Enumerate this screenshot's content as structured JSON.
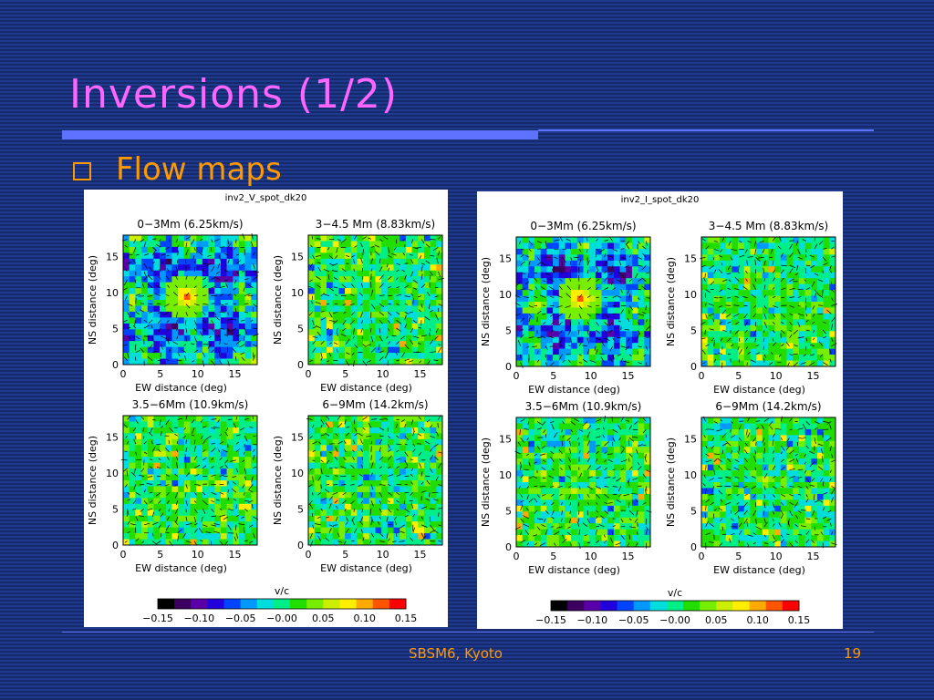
{
  "slide": {
    "title": "Inversions (1/2)",
    "bullet": "Flow maps",
    "footer_text": "SBSM6, Kyoto",
    "page_number": "19"
  },
  "colors": {
    "background": "#1a2f7a",
    "title": "#ff66ff",
    "accent_rule": "#5f72ff",
    "bullet_text": "#ff9900",
    "footer_text": "#ff9900"
  },
  "figures": [
    {
      "title": "inv2_V_spot_dk20",
      "panels": [
        {
          "title": "0−3Mm (6.25km/s)",
          "x_label": "EW distance (deg)",
          "y_label": "NS distance (deg)",
          "x_ticks": [
            "0",
            "5",
            "10",
            "15"
          ],
          "y_ticks": [
            "0",
            "5",
            "10",
            "15"
          ],
          "spot_strength": 1.0
        },
        {
          "title": "3−4.5 Mm (8.83km/s)",
          "x_label": "EW distance (deg)",
          "y_label": "NS distance (deg)",
          "x_ticks": [
            "0",
            "5",
            "10",
            "15"
          ],
          "y_ticks": [
            "0",
            "5",
            "10",
            "15"
          ],
          "spot_strength": 0.0
        },
        {
          "title": "3.5−6Mm (10.9km/s)",
          "x_label": "EW distance (deg)",
          "y_label": "NS distance (deg)",
          "x_ticks": [
            "0",
            "5",
            "10",
            "15"
          ],
          "y_ticks": [
            "0",
            "5",
            "10",
            "15"
          ],
          "spot_strength": 0.0
        },
        {
          "title": "6−9Mm (14.2km/s)",
          "x_label": "EW distance (deg)",
          "y_label": "NS distance (deg)",
          "x_ticks": [
            "0",
            "5",
            "10",
            "15"
          ],
          "y_ticks": [
            "0",
            "5",
            "10",
            "15"
          ],
          "spot_strength": 0.0
        }
      ],
      "colorbar": {
        "label": "v/c",
        "ticks": [
          "−0.15",
          "−0.10",
          "−0.05",
          "−0.00",
          "0.05",
          "0.10",
          "0.15"
        ]
      }
    },
    {
      "title": "inv2_I_spot_dk20",
      "panels": [
        {
          "title": "0−3Mm (6.25km/s)",
          "x_label": "EW distance (deg)",
          "y_label": "NS distance (deg)",
          "x_ticks": [
            "0",
            "5",
            "10",
            "15"
          ],
          "y_ticks": [
            "0",
            "5",
            "10",
            "15"
          ],
          "spot_strength": 0.85
        },
        {
          "title": "3−4.5 Mm (8.83km/s)",
          "x_label": "EW distance (deg)",
          "y_label": "NS distance (deg)",
          "x_ticks": [
            "0",
            "5",
            "10",
            "15"
          ],
          "y_ticks": [
            "0",
            "5",
            "10",
            "15"
          ],
          "spot_strength": 0.0
        },
        {
          "title": "3.5−6Mm (10.9km/s)",
          "x_label": "EW distance (deg)",
          "y_label": "NS distance (deg)",
          "x_ticks": [
            "0",
            "5",
            "10",
            "15"
          ],
          "y_ticks": [
            "0",
            "5",
            "10",
            "15"
          ],
          "spot_strength": 0.0
        },
        {
          "title": "6−9Mm (14.2km/s)",
          "x_label": "EW distance (deg)",
          "y_label": "NS distance (deg)",
          "x_ticks": [
            "0",
            "5",
            "10",
            "15"
          ],
          "y_ticks": [
            "0",
            "5",
            "10",
            "15"
          ],
          "spot_strength": 0.0
        }
      ],
      "colorbar": {
        "label": "v/c",
        "ticks": [
          "−0.15",
          "−0.10",
          "−0.05",
          "−0.00",
          "0.05",
          "0.10",
          "0.15"
        ]
      }
    }
  ],
  "colorbar_colors": [
    "#000000",
    "#3b0060",
    "#5a00a8",
    "#2200dd",
    "#0044ff",
    "#0099ff",
    "#00dddd",
    "#00ee88",
    "#22dd00",
    "#77ee00",
    "#ccee00",
    "#ffee00",
    "#ffaa00",
    "#ff5500",
    "#ff0000"
  ]
}
